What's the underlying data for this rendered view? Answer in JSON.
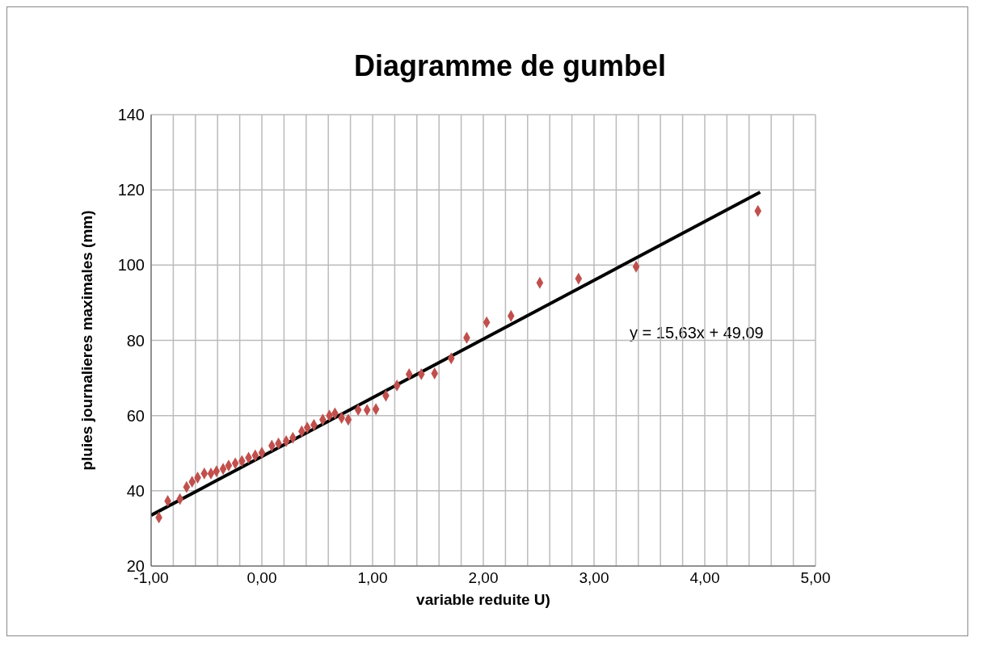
{
  "chart_data": {
    "type": "scatter",
    "title": "Diagramme de gumbel",
    "xlabel": "variable reduite U)",
    "ylabel": "pluies journalieres maximales (mm)",
    "xlim": [
      -1,
      5
    ],
    "ylim": [
      20,
      140
    ],
    "xticks": [
      {
        "value": -1,
        "label": "-1,00"
      },
      {
        "value": -0.8,
        "label": null
      },
      {
        "value": -0.6,
        "label": null
      },
      {
        "value": -0.4,
        "label": null
      },
      {
        "value": -0.2,
        "label": null
      },
      {
        "value": 0,
        "label": "0,00"
      },
      {
        "value": 0.2,
        "label": null
      },
      {
        "value": 0.4,
        "label": null
      },
      {
        "value": 0.6,
        "label": null
      },
      {
        "value": 0.8,
        "label": null
      },
      {
        "value": 1,
        "label": "1,00"
      },
      {
        "value": 1.2,
        "label": null
      },
      {
        "value": 1.4,
        "label": null
      },
      {
        "value": 1.6,
        "label": null
      },
      {
        "value": 1.8,
        "label": null
      },
      {
        "value": 2,
        "label": "2,00"
      },
      {
        "value": 2.2,
        "label": null
      },
      {
        "value": 2.4,
        "label": null
      },
      {
        "value": 2.6,
        "label": null
      },
      {
        "value": 2.8,
        "label": null
      },
      {
        "value": 3,
        "label": "3,00"
      },
      {
        "value": 3.2,
        "label": null
      },
      {
        "value": 3.4,
        "label": null
      },
      {
        "value": 3.6,
        "label": null
      },
      {
        "value": 3.8,
        "label": null
      },
      {
        "value": 4,
        "label": "4,00"
      },
      {
        "value": 4.2,
        "label": null
      },
      {
        "value": 4.4,
        "label": null
      },
      {
        "value": 4.6,
        "label": null
      },
      {
        "value": 4.8,
        "label": null
      },
      {
        "value": 5,
        "label": "5,00"
      }
    ],
    "yticks": [
      20,
      40,
      60,
      80,
      100,
      120,
      140
    ],
    "grid": true,
    "series": [
      {
        "marker": "diamond",
        "color": "#c0504d",
        "x": [
          -0.93,
          -0.85,
          -0.74,
          -0.68,
          -0.63,
          -0.58,
          -0.52,
          -0.46,
          -0.41,
          -0.35,
          -0.3,
          -0.24,
          -0.18,
          -0.12,
          -0.06,
          0.0,
          0.09,
          0.15,
          0.22,
          0.28,
          0.36,
          0.41,
          0.47,
          0.55,
          0.61,
          0.66,
          0.72,
          0.78,
          0.87,
          0.95,
          1.03,
          1.12,
          1.22,
          1.33,
          1.44,
          1.56,
          1.71,
          1.85,
          2.03,
          2.25,
          2.51,
          2.86,
          3.38,
          4.48
        ],
        "values": [
          32.9,
          37.3,
          37.8,
          41.0,
          42.4,
          43.5,
          44.6,
          44.6,
          45.2,
          45.8,
          46.7,
          47.3,
          47.9,
          48.8,
          49.4,
          50.1,
          52.0,
          52.6,
          53.2,
          54.1,
          55.8,
          56.8,
          57.5,
          58.9,
          60.0,
          60.6,
          59.4,
          58.9,
          61.5,
          61.5,
          61.7,
          65.3,
          68.0,
          71.0,
          71.0,
          71.2,
          75.2,
          80.7,
          84.8,
          86.5,
          95.3,
          96.4,
          99.6,
          114.4
        ]
      },
      {
        "type": "line",
        "color": "#000000",
        "x": [
          -1,
          4.5
        ],
        "values": [
          33.5,
          119.4
        ]
      }
    ],
    "annotations": [
      "y = 15,63x + 49,09"
    ]
  }
}
